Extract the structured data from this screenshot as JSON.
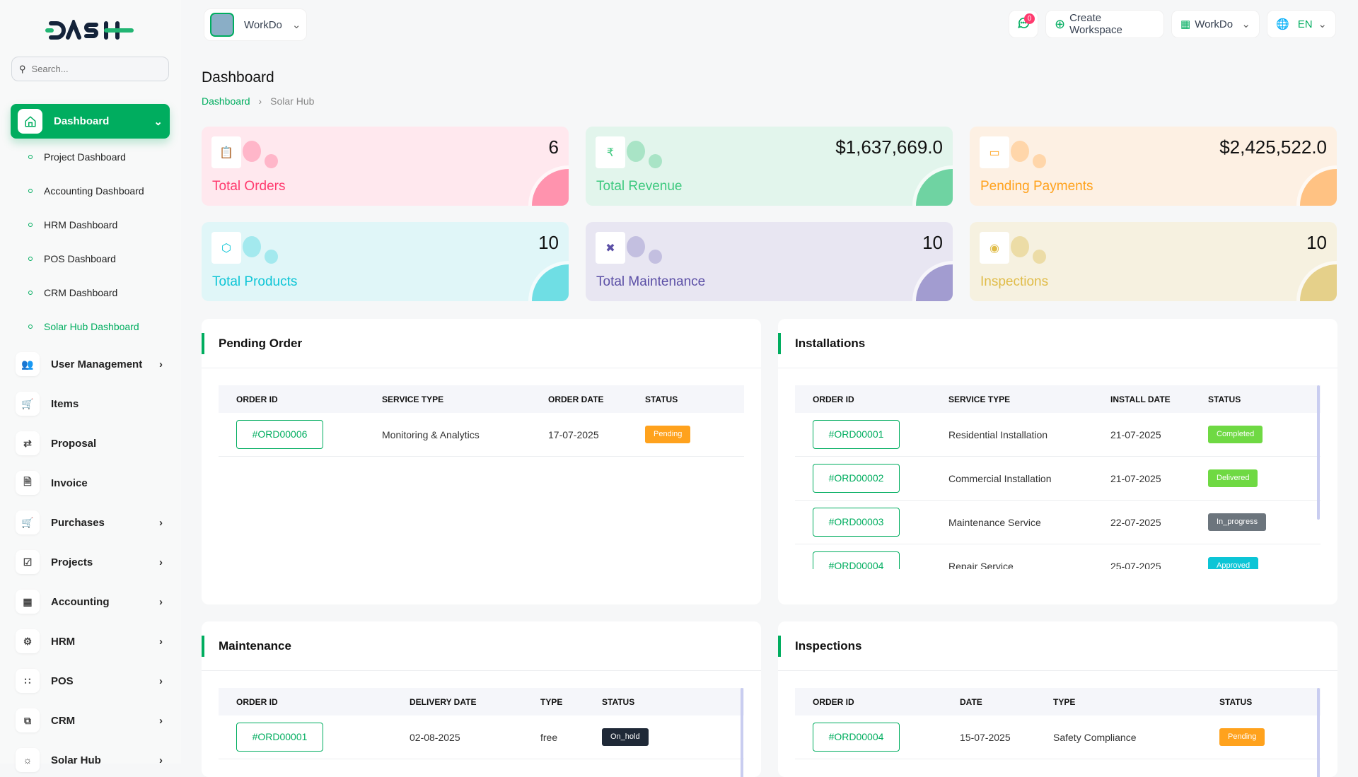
{
  "brand": {
    "logo_text": "DASH",
    "accent": "#00ad5f"
  },
  "sidebar": {
    "search_placeholder": "Search...",
    "dashboard_label": "Dashboard",
    "sub_items": [
      {
        "label": "Project Dashboard"
      },
      {
        "label": "Accounting Dashboard"
      },
      {
        "label": "HRM Dashboard"
      },
      {
        "label": "POS Dashboard"
      },
      {
        "label": "CRM Dashboard"
      },
      {
        "label": "Solar Hub Dashboard",
        "active": true
      }
    ],
    "items": [
      {
        "label": "User Management",
        "icon": "users-icon",
        "chevron": true
      },
      {
        "label": "Items",
        "icon": "cart-icon",
        "chevron": false
      },
      {
        "label": "Proposal",
        "icon": "proposal-icon",
        "chevron": false
      },
      {
        "label": "Invoice",
        "icon": "invoice-icon",
        "chevron": false
      },
      {
        "label": "Purchases",
        "icon": "cart-icon",
        "chevron": true
      },
      {
        "label": "Projects",
        "icon": "check-square-icon",
        "chevron": true
      },
      {
        "label": "Accounting",
        "icon": "grid-icon",
        "chevron": true
      },
      {
        "label": "HRM",
        "icon": "hrm-icon",
        "chevron": true
      },
      {
        "label": "POS",
        "icon": "dots-grid-icon",
        "chevron": true
      },
      {
        "label": "CRM",
        "icon": "crm-icon",
        "chevron": true
      },
      {
        "label": "Solar Hub",
        "icon": "sun-icon",
        "chevron": true
      }
    ]
  },
  "header": {
    "workspace": "WorkDo",
    "notifications": "0",
    "create_workspace": "Create Workspace",
    "workspace_menu": "WorkDo",
    "language": "EN"
  },
  "page": {
    "title": "Dashboard",
    "breadcrumb": [
      "Dashboard",
      "Solar Hub"
    ]
  },
  "cards": [
    {
      "label": "Total Orders",
      "value": "6",
      "icon": "clipboard-icon",
      "color": "#ff3a6e",
      "bg": "#ffe8ee",
      "light": "#ffb6c9",
      "quarter": "#ff93ae"
    },
    {
      "label": "Total Revenue",
      "value": "$1,637,669.0",
      "icon": "rupee-icon",
      "color": "#3ec97f",
      "bg": "#e2f5ec",
      "light": "#a9e4c6",
      "quarter": "#6fd3a2"
    },
    {
      "label": "Pending Payments",
      "value": "$2,425,522.0",
      "icon": "card-off-icon",
      "color": "#ffa21d",
      "bg": "#fdf0e3",
      "light": "#ffd6aa",
      "quarter": "#ffc283"
    },
    {
      "label": "Total Products",
      "value": "10",
      "icon": "box-icon",
      "color": "#0cc5d6",
      "bg": "#e0f6f8",
      "light": "#a3e9ee",
      "quarter": "#6fdee4"
    },
    {
      "label": "Total Maintenance",
      "value": "10",
      "icon": "tools-icon",
      "color": "#5b4fa6",
      "bg": "#e8e6f2",
      "light": "#c3bfe0",
      "quarter": "#a29cd0"
    },
    {
      "label": "Inspections",
      "value": "10",
      "icon": "eye-icon",
      "color": "#e0bc48",
      "bg": "#f6f1e0",
      "light": "#ecdca6",
      "quarter": "#e5d08a"
    }
  ],
  "panels": {
    "pending_order": {
      "title": "Pending Order",
      "columns": [
        "ORDER ID",
        "SERVICE TYPE",
        "ORDER DATE",
        "STATUS"
      ],
      "rows": [
        [
          "#ORD00006",
          "Monitoring & Analytics",
          "17-07-2025",
          "Pending"
        ]
      ]
    },
    "installations": {
      "title": "Installations",
      "columns": [
        "ORDER ID",
        "SERVICE TYPE",
        "INSTALL DATE",
        "STATUS"
      ],
      "rows": [
        [
          "#ORD00001",
          "Residential Installation",
          "21-07-2025",
          "Completed"
        ],
        [
          "#ORD00002",
          "Commercial Installation",
          "21-07-2025",
          "Delivered"
        ],
        [
          "#ORD00003",
          "Maintenance Service",
          "22-07-2025",
          "In_progress"
        ],
        [
          "#ORD00004",
          "Repair Service",
          "25-07-2025",
          "Approved"
        ]
      ]
    },
    "maintenance": {
      "title": "Maintenance",
      "columns": [
        "ORDER ID",
        "DELIVERY DATE",
        "TYPE",
        "STATUS"
      ],
      "rows": [
        [
          "#ORD00001",
          "02-08-2025",
          "free",
          "On_hold"
        ]
      ]
    },
    "inspections": {
      "title": "Inspections",
      "columns": [
        "ORDER ID",
        "DATE",
        "TYPE",
        "STATUS"
      ],
      "rows": [
        [
          "#ORD00004",
          "15-07-2025",
          "Safety Compliance",
          "Pending"
        ]
      ]
    }
  },
  "status_colors": {
    "Pending": "#ffa21d",
    "Completed": "#6fd943",
    "Delivered": "#6fd943",
    "In_progress": "#6c757d",
    "Approved": "#0cc5d6",
    "On_hold": "#1f2937"
  }
}
